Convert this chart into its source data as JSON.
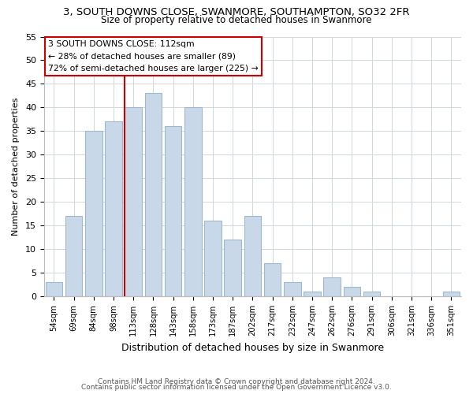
{
  "title": "3, SOUTH DOWNS CLOSE, SWANMORE, SOUTHAMPTON, SO32 2FR",
  "subtitle": "Size of property relative to detached houses in Swanmore",
  "xlabel": "Distribution of detached houses by size in Swanmore",
  "ylabel": "Number of detached properties",
  "bar_labels": [
    "54sqm",
    "69sqm",
    "84sqm",
    "98sqm",
    "113sqm",
    "128sqm",
    "143sqm",
    "158sqm",
    "173sqm",
    "187sqm",
    "202sqm",
    "217sqm",
    "232sqm",
    "247sqm",
    "262sqm",
    "276sqm",
    "291sqm",
    "306sqm",
    "321sqm",
    "336sqm",
    "351sqm"
  ],
  "bar_values": [
    3,
    17,
    35,
    37,
    40,
    43,
    36,
    40,
    16,
    12,
    17,
    7,
    3,
    1,
    4,
    2,
    1,
    0,
    0,
    0,
    1
  ],
  "bar_color": "#c8d8e8",
  "bar_edge_color": "#a0b8cc",
  "vline_color": "#cc0000",
  "annotation_title": "3 SOUTH DOWNS CLOSE: 112sqm",
  "annotation_line1": "← 28% of detached houses are smaller (89)",
  "annotation_line2": "72% of semi-detached houses are larger (225) →",
  "annotation_box_color": "#ffffff",
  "annotation_box_edge": "#cc0000",
  "ylim": [
    0,
    55
  ],
  "yticks": [
    0,
    5,
    10,
    15,
    20,
    25,
    30,
    35,
    40,
    45,
    50,
    55
  ],
  "footer_line1": "Contains HM Land Registry data © Crown copyright and database right 2024.",
  "footer_line2": "Contains public sector information licensed under the Open Government Licence v3.0.",
  "background_color": "#ffffff",
  "grid_color": "#d0d8e0"
}
